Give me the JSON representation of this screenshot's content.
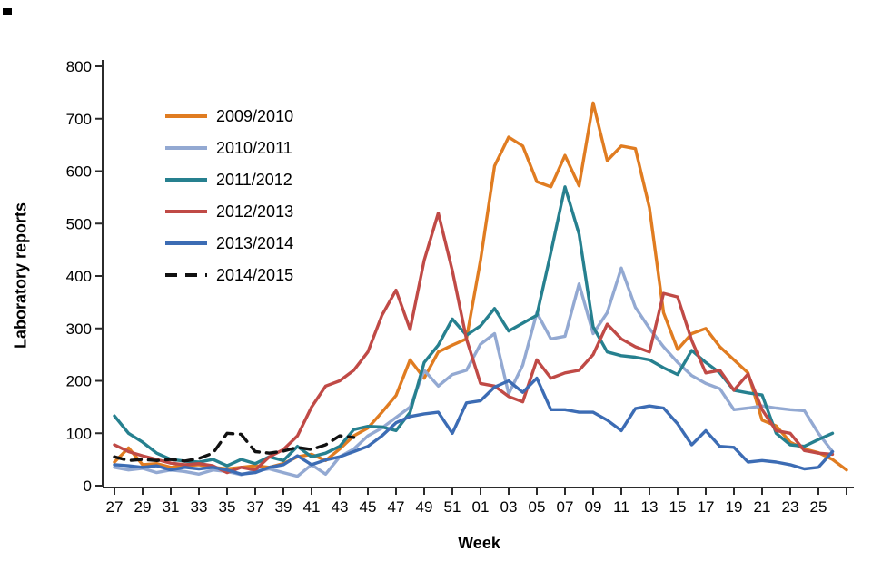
{
  "chart_data": {
    "type": "line",
    "title": "",
    "xlabel": "Week",
    "ylabel": "Laboratory reports",
    "ylim": [
      0,
      800
    ],
    "ytick_step": 100,
    "ytick_labels": [
      "0",
      "100",
      "200",
      "300",
      "400",
      "500",
      "600",
      "700",
      "800"
    ],
    "x_tick_labels": [
      "27",
      "29",
      "31",
      "33",
      "35",
      "37",
      "39",
      "41",
      "43",
      "45",
      "47",
      "49",
      "51",
      "01",
      "03",
      "05",
      "07",
      "09",
      "11",
      "13",
      "15",
      "17",
      "19",
      "21",
      "23",
      "25"
    ],
    "x_categories": [
      "27",
      "28",
      "29",
      "30",
      "31",
      "32",
      "33",
      "34",
      "35",
      "36",
      "37",
      "38",
      "39",
      "40",
      "41",
      "42",
      "43",
      "44",
      "45",
      "46",
      "47",
      "48",
      "49",
      "50",
      "51",
      "52",
      "01",
      "02",
      "03",
      "04",
      "05",
      "06",
      "07",
      "08",
      "09",
      "10",
      "11",
      "12",
      "13",
      "14",
      "15",
      "16",
      "17",
      "18",
      "19",
      "20",
      "21",
      "22",
      "23",
      "24",
      "25",
      "26",
      "27"
    ],
    "grid": false,
    "legend_position": "upper-left",
    "axis_color": "#2b2b2b",
    "series": [
      {
        "name": "2009/2010",
        "color": "#e07c21",
        "dash": false,
        "values": [
          45,
          72,
          40,
          42,
          35,
          38,
          40,
          35,
          32,
          35,
          38,
          35,
          42,
          55,
          60,
          48,
          70,
          95,
          110,
          140,
          172,
          240,
          205,
          255,
          268,
          280,
          430,
          610,
          665,
          648,
          580,
          570,
          630,
          572,
          730,
          620,
          648,
          643,
          530,
          330,
          260,
          290,
          300,
          265,
          240,
          215,
          125,
          114,
          83,
          70,
          63,
          50,
          30
        ]
      },
      {
        "name": "2010/2011",
        "color": "#93a9d2",
        "dash": false,
        "values": [
          35,
          30,
          33,
          25,
          30,
          27,
          22,
          30,
          27,
          21,
          28,
          32,
          25,
          18,
          40,
          22,
          55,
          70,
          95,
          110,
          130,
          150,
          220,
          190,
          212,
          220,
          270,
          290,
          175,
          230,
          330,
          280,
          285,
          385,
          290,
          330,
          415,
          340,
          300,
          265,
          235,
          210,
          195,
          185,
          145,
          148,
          152,
          148,
          145,
          143,
          100,
          65
        ]
      },
      {
        "name": "2011/2012",
        "color": "#26808f",
        "dash": false,
        "values": [
          133,
          100,
          83,
          62,
          50,
          47,
          45,
          50,
          38,
          50,
          42,
          55,
          48,
          75,
          55,
          62,
          75,
          107,
          113,
          112,
          105,
          140,
          235,
          268,
          318,
          287,
          305,
          338,
          295,
          310,
          325,
          445,
          570,
          480,
          303,
          255,
          248,
          245,
          240,
          225,
          212,
          258,
          235,
          215,
          182,
          177,
          173,
          100,
          78,
          75,
          88,
          100
        ]
      },
      {
        "name": "2012/2013",
        "color": "#c04a46",
        "dash": false,
        "values": [
          78,
          65,
          57,
          50,
          43,
          40,
          42,
          38,
          25,
          35,
          30,
          55,
          69,
          95,
          150,
          190,
          200,
          220,
          255,
          325,
          373,
          298,
          430,
          520,
          410,
          280,
          195,
          190,
          170,
          160,
          240,
          205,
          215,
          220,
          250,
          308,
          280,
          265,
          255,
          367,
          360,
          277,
          215,
          220,
          182,
          213,
          145,
          105,
          100,
          67,
          62,
          60
        ]
      },
      {
        "name": "2013/2014",
        "color": "#3c6cb4",
        "dash": false,
        "values": [
          40,
          38,
          35,
          38,
          30,
          35,
          32,
          35,
          30,
          22,
          25,
          35,
          40,
          57,
          40,
          49,
          55,
          65,
          75,
          95,
          120,
          132,
          137,
          140,
          100,
          158,
          162,
          188,
          200,
          178,
          205,
          145,
          145,
          140,
          140,
          125,
          105,
          147,
          152,
          148,
          118,
          78,
          105,
          75,
          73,
          45,
          48,
          45,
          40,
          32,
          35,
          65
        ]
      },
      {
        "name": "2014/2015",
        "color": "#111111",
        "dash": true,
        "values": [
          55,
          48,
          50,
          48,
          50,
          47,
          52,
          62,
          100,
          98,
          65,
          62,
          66,
          73,
          69,
          78,
          95,
          92
        ]
      }
    ]
  }
}
